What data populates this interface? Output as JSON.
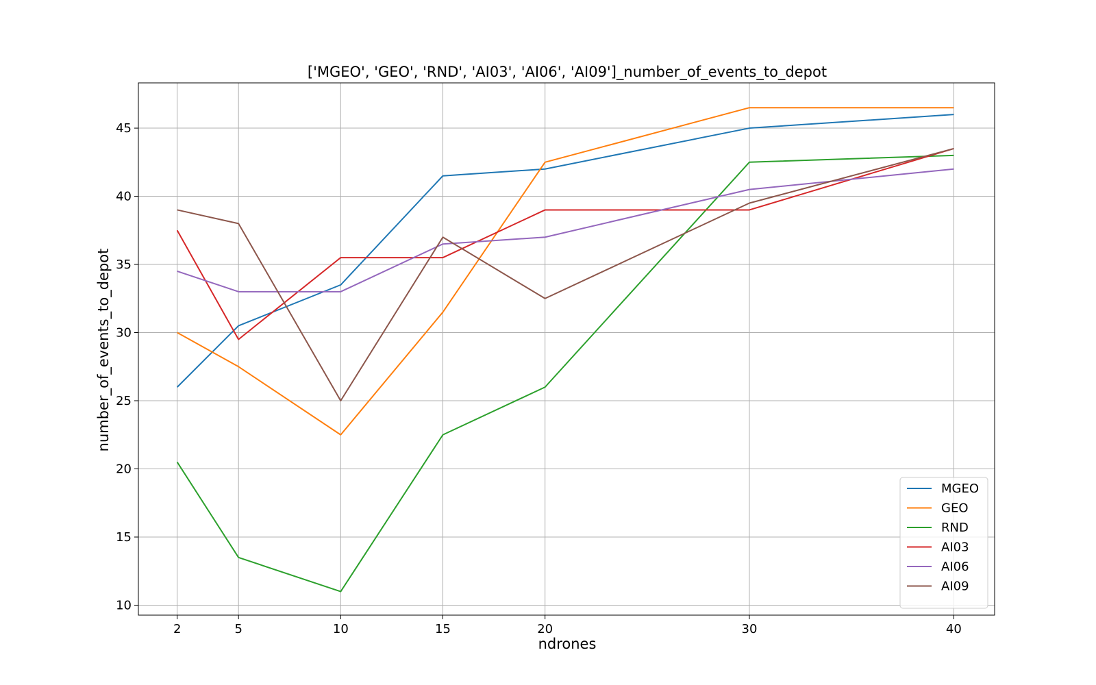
{
  "chart_data": {
    "type": "line",
    "title": "['MGEO', 'GEO', 'RND', 'AI03', 'AI06', 'AI09']_number_of_events_to_depot",
    "xlabel": "ndrones",
    "ylabel": "number_of_events_to_depot",
    "x": [
      2,
      5,
      10,
      15,
      20,
      30,
      40
    ],
    "xticks": [
      "2",
      "5",
      "10",
      "15",
      "20",
      "30",
      "40"
    ],
    "yticks": [
      "10",
      "15",
      "20",
      "25",
      "30",
      "35",
      "40",
      "45"
    ],
    "xlim": [
      0.1,
      42
    ],
    "ylim": [
      9.27,
      48.32
    ],
    "grid": true,
    "legend_position": "lower right",
    "series": [
      {
        "name": "MGEO",
        "color": "#1f77b4",
        "values": [
          26,
          30.5,
          33.5,
          41.5,
          42,
          45,
          46
        ]
      },
      {
        "name": "GEO",
        "color": "#ff7f0e",
        "values": [
          30,
          27.5,
          22.5,
          31.5,
          42.5,
          46.5,
          46.5
        ]
      },
      {
        "name": "RND",
        "color": "#2ca02c",
        "values": [
          20.5,
          13.5,
          11,
          22.5,
          26,
          42.5,
          43
        ]
      },
      {
        "name": "AI03",
        "color": "#d62728",
        "values": [
          37.5,
          29.5,
          35.5,
          35.5,
          39,
          39,
          43.5
        ]
      },
      {
        "name": "AI06",
        "color": "#9467bd",
        "values": [
          34.5,
          33,
          33,
          36.5,
          37,
          40.5,
          42
        ]
      },
      {
        "name": "AI09",
        "color": "#8c564b",
        "values": [
          39,
          38,
          25,
          37,
          32.5,
          39.5,
          43.5
        ]
      }
    ]
  }
}
